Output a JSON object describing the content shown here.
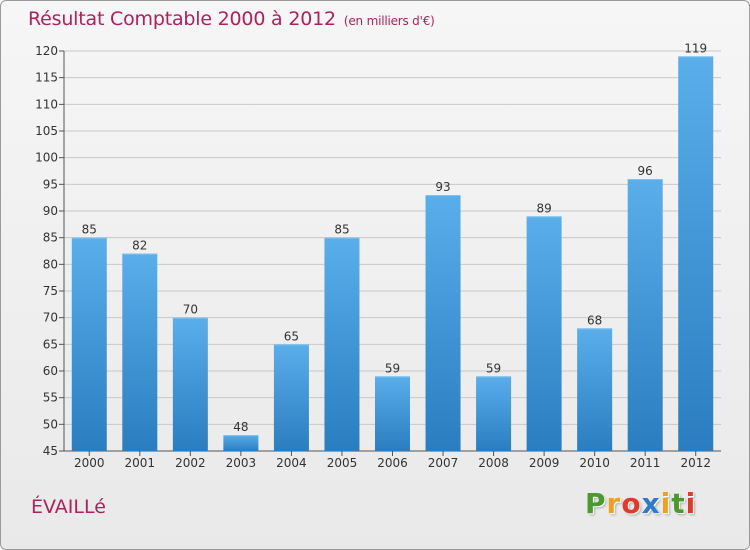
{
  "chart_data": {
    "type": "bar",
    "title": "Résultat Comptable 2000 à 2012",
    "subtitle": "(en milliers d'€)",
    "categories": [
      "2000",
      "2001",
      "2002",
      "2003",
      "2004",
      "2005",
      "2006",
      "2007",
      "2008",
      "2009",
      "2010",
      "2011",
      "2012"
    ],
    "values": [
      85,
      82,
      70,
      48,
      65,
      85,
      59,
      93,
      59,
      89,
      68,
      96,
      119
    ],
    "ylim": [
      45,
      120
    ],
    "yticks": [
      45,
      50,
      55,
      60,
      65,
      70,
      75,
      80,
      85,
      90,
      95,
      100,
      105,
      110,
      115,
      120
    ],
    "xlabel": "",
    "ylabel": "",
    "grid": true,
    "colors": {
      "bar_top": "#5aaeea",
      "bar_bottom": "#2a7dc0",
      "grid": "#c8c8c8"
    }
  },
  "commune": "ÉVAILLé",
  "brand": {
    "letters": [
      "P",
      "r",
      "o",
      "x",
      "i",
      "t",
      "i"
    ],
    "colors": [
      "#4a9a2c",
      "#f0a020",
      "#e03a2a",
      "#2c7ac8",
      "#f0a020",
      "#4a9a2c",
      "#e03a2a"
    ]
  }
}
